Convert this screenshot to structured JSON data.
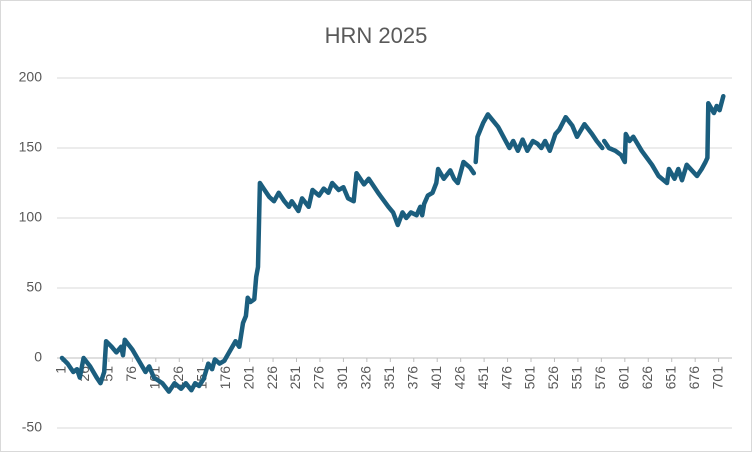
{
  "chart_data": {
    "type": "line",
    "title": "HRN 2025",
    "x": [
      1,
      7,
      13,
      17,
      20,
      24,
      31,
      38,
      42,
      46,
      48,
      54,
      59,
      64,
      66,
      68,
      76,
      83,
      90,
      94,
      99,
      108,
      115,
      121,
      128,
      133,
      139,
      143,
      147,
      152,
      157,
      161,
      164,
      169,
      174,
      186,
      190,
      194,
      197,
      199,
      202,
      206,
      208,
      210,
      212,
      215,
      222,
      227,
      232,
      238,
      243,
      246,
      253,
      257,
      264,
      268,
      275,
      280,
      285,
      289,
      296,
      301,
      306,
      312,
      315,
      319,
      323,
      328,
      338,
      349,
      354,
      359,
      364,
      368,
      373,
      379,
      383,
      385,
      387,
      391,
      396,
      400,
      402,
      408,
      415,
      419,
      423,
      429,
      436,
      440,
      441,
      442,
      444,
      450,
      455,
      466,
      474,
      478,
      482,
      487,
      492,
      497,
      503,
      508,
      512,
      516,
      521,
      527,
      531,
      538,
      545,
      550,
      558,
      566,
      571,
      577,
      578,
      579,
      584,
      591,
      597,
      601,
      602,
      606,
      610,
      619,
      630,
      637,
      646,
      648,
      654,
      658,
      662,
      667,
      678,
      683,
      687,
      689,
      690,
      696,
      699,
      702,
      706
    ],
    "values": [
      0,
      -4,
      -10,
      -8,
      -14,
      0,
      -6,
      -14,
      -18,
      -10,
      12,
      8,
      4,
      8,
      2,
      13,
      6,
      -2,
      -10,
      -6,
      -14,
      -18,
      -24,
      -18,
      -22,
      -18,
      -23,
      -18,
      -20,
      -15,
      -4,
      -8,
      -1,
      -4,
      -2,
      12,
      8,
      25,
      30,
      43,
      40,
      42,
      58,
      65,
      125,
      122,
      115,
      112,
      118,
      112,
      108,
      112,
      105,
      114,
      108,
      120,
      116,
      121,
      118,
      125,
      120,
      122,
      114,
      112,
      132,
      128,
      124,
      128,
      118,
      108,
      104,
      95,
      104,
      100,
      104,
      102,
      108,
      102,
      110,
      116,
      118,
      125,
      135,
      128,
      134,
      128,
      125,
      140,
      136,
      132,
      null,
      140,
      158,
      168,
      174,
      165,
      155,
      150,
      155,
      148,
      156,
      148,
      155,
      153,
      150,
      155,
      148,
      160,
      163,
      172,
      166,
      158,
      167,
      160,
      155,
      150,
      null,
      155,
      150,
      148,
      145,
      140,
      160,
      155,
      158,
      148,
      138,
      130,
      125,
      135,
      128,
      135,
      127,
      138,
      130,
      135,
      140,
      143,
      182,
      175,
      180,
      177,
      187
    ],
    "color": "#1b5e7e",
    "xlim": [
      1,
      711
    ],
    "xticks": [
      1,
      26,
      51,
      76,
      101,
      126,
      151,
      176,
      201,
      226,
      251,
      276,
      301,
      326,
      351,
      376,
      401,
      426,
      451,
      476,
      501,
      526,
      551,
      576,
      601,
      626,
      651,
      676,
      701
    ],
    "ylim": [
      -50,
      200
    ],
    "yticks": [
      -50,
      0,
      50,
      100,
      150,
      200
    ],
    "grid": true
  }
}
